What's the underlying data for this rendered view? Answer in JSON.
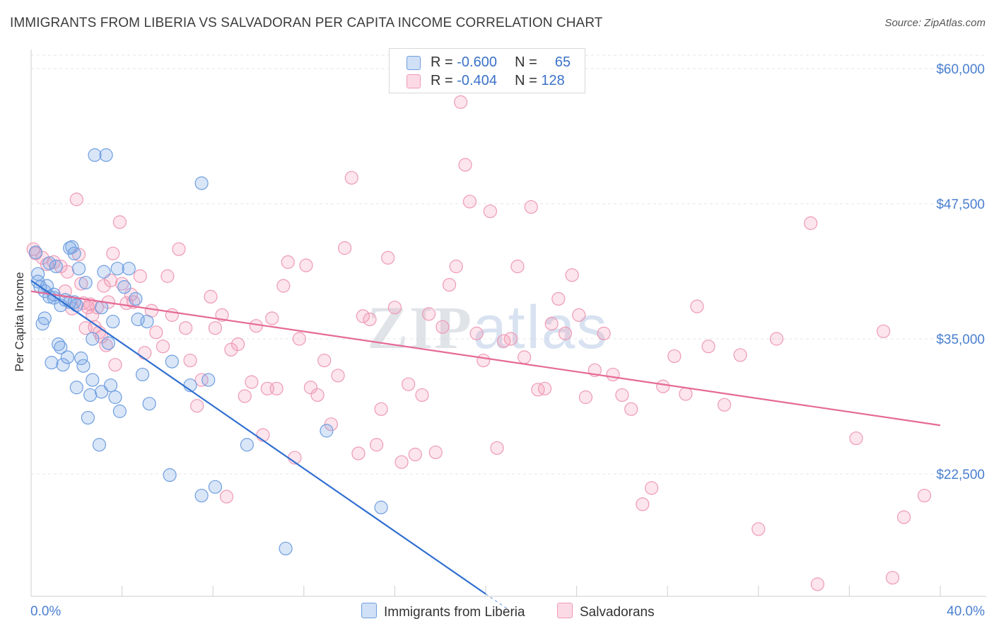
{
  "title": "IMMIGRANTS FROM LIBERIA VS SALVADORAN PER CAPITA INCOME CORRELATION CHART",
  "source": "Source: ZipAtlas.com",
  "watermark": "ZIPatlas",
  "legend": {
    "rows": [
      {
        "r_label": "R =",
        "r_value": "-0.600",
        "n_label": "N =",
        "n_value": "65"
      },
      {
        "r_label": "R =",
        "r_value": "-0.404",
        "n_label": "N =",
        "n_value": "128"
      }
    ]
  },
  "bottom_legend": [
    "Immigrants from Liberia",
    "Salvadorans"
  ],
  "colors": {
    "blue_fill": "rgba(120,165,230,0.28)",
    "blue_stroke": "#6f9ee0",
    "blue_line": "#2f6fd0",
    "pink_fill": "rgba(245,150,180,0.25)",
    "pink_stroke": "#ee9ab6",
    "pink_line": "#e56a95",
    "grid": "#e6e6e6",
    "tick_text": "#4a7fd0"
  },
  "chart_data": {
    "type": "scatter",
    "title": "IMMIGRANTS FROM LIBERIA VS SALVADORAN PER CAPITA INCOME CORRELATION CHART",
    "xlabel": "",
    "ylabel": "Per Capita Income",
    "x_range": [
      0.0,
      40.0
    ],
    "y_range": [
      10000,
      62000
    ],
    "x_tick_labels": [
      "0.0%",
      "40.0%"
    ],
    "y_ticks": [
      22500,
      35000,
      47500,
      60000
    ],
    "y_tick_labels": [
      "$22,500",
      "$35,000",
      "$47,500",
      "$60,000"
    ],
    "grid": true,
    "legend_position": "top-center",
    "series": [
      {
        "name": "Immigrants from Liberia",
        "color": "#6f9ee0",
        "trend": {
          "x": [
            0.0,
            20.0
          ],
          "y": [
            40400,
            11400
          ],
          "dashed_to": {
            "x": 21.0,
            "y": 9950
          }
        },
        "points": [
          [
            0.3,
            41000
          ],
          [
            0.3,
            40300
          ],
          [
            0.4,
            39800
          ],
          [
            0.5,
            36400
          ],
          [
            0.6,
            36900
          ],
          [
            0.6,
            39400
          ],
          [
            0.7,
            39900
          ],
          [
            0.8,
            42000
          ],
          [
            0.8,
            38900
          ],
          [
            0.9,
            32800
          ],
          [
            1.0,
            39100
          ],
          [
            1.0,
            38800
          ],
          [
            1.1,
            41700
          ],
          [
            1.2,
            34500
          ],
          [
            1.3,
            34200
          ],
          [
            1.3,
            38100
          ],
          [
            1.4,
            32600
          ],
          [
            1.5,
            38600
          ],
          [
            1.6,
            33300
          ],
          [
            1.7,
            43400
          ],
          [
            1.7,
            38400
          ],
          [
            1.8,
            43500
          ],
          [
            1.9,
            42900
          ],
          [
            1.9,
            38400
          ],
          [
            2.0,
            38100
          ],
          [
            2.0,
            30500
          ],
          [
            2.1,
            41500
          ],
          [
            2.2,
            33200
          ],
          [
            2.3,
            32500
          ],
          [
            2.4,
            40200
          ],
          [
            2.5,
            27700
          ],
          [
            2.6,
            29800
          ],
          [
            2.7,
            31200
          ],
          [
            2.7,
            35000
          ],
          [
            2.8,
            52000
          ],
          [
            3.0,
            25200
          ],
          [
            3.1,
            30100
          ],
          [
            3.1,
            37900
          ],
          [
            3.2,
            41200
          ],
          [
            3.3,
            52000
          ],
          [
            3.4,
            34600
          ],
          [
            3.5,
            30700
          ],
          [
            3.6,
            36600
          ],
          [
            3.7,
            29600
          ],
          [
            3.8,
            41500
          ],
          [
            3.9,
            28300
          ],
          [
            4.1,
            39800
          ],
          [
            4.3,
            41500
          ],
          [
            4.6,
            38700
          ],
          [
            4.7,
            36800
          ],
          [
            4.9,
            31700
          ],
          [
            5.1,
            36600
          ],
          [
            5.2,
            29000
          ],
          [
            6.1,
            22400
          ],
          [
            6.2,
            32900
          ],
          [
            7.0,
            30700
          ],
          [
            7.5,
            20500
          ],
          [
            7.5,
            49400
          ],
          [
            7.8,
            31200
          ],
          [
            8.1,
            21300
          ],
          [
            9.5,
            25200
          ],
          [
            11.2,
            15600
          ],
          [
            13.0,
            26500
          ],
          [
            15.4,
            19400
          ],
          [
            0.2,
            43000
          ]
        ]
      },
      {
        "name": "Salvadorans",
        "color": "#ee9ab6",
        "trend": {
          "x": [
            0.0,
            40.0
          ],
          "y": [
            39400,
            27000
          ]
        },
        "points": [
          [
            0.1,
            43300
          ],
          [
            0.2,
            42900
          ],
          [
            0.5,
            42500
          ],
          [
            0.7,
            41900
          ],
          [
            1.0,
            42100
          ],
          [
            1.3,
            41700
          ],
          [
            1.5,
            39400
          ],
          [
            1.6,
            41200
          ],
          [
            1.8,
            37800
          ],
          [
            2.0,
            47900
          ],
          [
            2.1,
            42800
          ],
          [
            2.2,
            40100
          ],
          [
            2.3,
            38300
          ],
          [
            2.4,
            36000
          ],
          [
            2.5,
            37900
          ],
          [
            2.6,
            38200
          ],
          [
            2.7,
            37200
          ],
          [
            2.8,
            36100
          ],
          [
            2.9,
            37900
          ],
          [
            3.0,
            35600
          ],
          [
            3.1,
            35200
          ],
          [
            3.2,
            39900
          ],
          [
            3.3,
            34400
          ],
          [
            3.4,
            38400
          ],
          [
            3.5,
            40400
          ],
          [
            3.6,
            42900
          ],
          [
            3.7,
            32600
          ],
          [
            3.9,
            45800
          ],
          [
            4.0,
            40100
          ],
          [
            4.2,
            38300
          ],
          [
            4.4,
            39100
          ],
          [
            4.5,
            38400
          ],
          [
            4.8,
            40800
          ],
          [
            5.0,
            33700
          ],
          [
            5.3,
            37600
          ],
          [
            5.5,
            35600
          ],
          [
            5.8,
            34300
          ],
          [
            6.0,
            40800
          ],
          [
            6.2,
            37200
          ],
          [
            6.5,
            43300
          ],
          [
            6.8,
            36000
          ],
          [
            7.0,
            33000
          ],
          [
            7.3,
            28800
          ],
          [
            7.5,
            31200
          ],
          [
            7.9,
            38900
          ],
          [
            8.1,
            36000
          ],
          [
            8.4,
            37200
          ],
          [
            8.6,
            20400
          ],
          [
            8.8,
            34000
          ],
          [
            9.1,
            34500
          ],
          [
            9.4,
            29700
          ],
          [
            9.7,
            31000
          ],
          [
            9.9,
            36200
          ],
          [
            10.2,
            26100
          ],
          [
            10.4,
            30400
          ],
          [
            10.6,
            36900
          ],
          [
            10.8,
            30400
          ],
          [
            11.1,
            39900
          ],
          [
            11.3,
            42100
          ],
          [
            11.6,
            24000
          ],
          [
            11.8,
            35000
          ],
          [
            12.1,
            41800
          ],
          [
            12.3,
            30500
          ],
          [
            12.6,
            29800
          ],
          [
            12.9,
            33000
          ],
          [
            13.2,
            27100
          ],
          [
            13.5,
            31600
          ],
          [
            13.8,
            43400
          ],
          [
            14.1,
            49900
          ],
          [
            14.4,
            24400
          ],
          [
            14.6,
            37100
          ],
          [
            14.9,
            36800
          ],
          [
            15.2,
            25200
          ],
          [
            15.4,
            28500
          ],
          [
            15.7,
            42500
          ],
          [
            16.0,
            37900
          ],
          [
            16.3,
            23600
          ],
          [
            16.6,
            30800
          ],
          [
            16.9,
            24300
          ],
          [
            17.2,
            29800
          ],
          [
            17.5,
            37300
          ],
          [
            17.8,
            24500
          ],
          [
            18.1,
            36100
          ],
          [
            18.4,
            40000
          ],
          [
            18.7,
            41700
          ],
          [
            18.9,
            56900
          ],
          [
            19.1,
            51100
          ],
          [
            19.3,
            47700
          ],
          [
            19.6,
            35500
          ],
          [
            19.9,
            33000
          ],
          [
            20.2,
            46800
          ],
          [
            20.5,
            24900
          ],
          [
            20.8,
            34800
          ],
          [
            21.1,
            35000
          ],
          [
            21.4,
            41700
          ],
          [
            21.7,
            33300
          ],
          [
            22.0,
            47200
          ],
          [
            22.3,
            30300
          ],
          [
            22.6,
            30400
          ],
          [
            22.9,
            36400
          ],
          [
            23.2,
            38700
          ],
          [
            23.5,
            35500
          ],
          [
            23.8,
            40900
          ],
          [
            24.1,
            37200
          ],
          [
            24.4,
            29600
          ],
          [
            24.8,
            32100
          ],
          [
            25.2,
            35500
          ],
          [
            25.6,
            31700
          ],
          [
            26.0,
            29800
          ],
          [
            26.4,
            28500
          ],
          [
            26.9,
            19700
          ],
          [
            27.3,
            21200
          ],
          [
            27.8,
            30600
          ],
          [
            28.3,
            33400
          ],
          [
            28.8,
            29900
          ],
          [
            29.3,
            38000
          ],
          [
            29.8,
            34300
          ],
          [
            30.5,
            28900
          ],
          [
            31.2,
            33500
          ],
          [
            32.0,
            17400
          ],
          [
            32.8,
            35000
          ],
          [
            34.3,
            45700
          ],
          [
            34.6,
            12300
          ],
          [
            36.3,
            25800
          ],
          [
            37.5,
            35700
          ],
          [
            37.9,
            12900
          ],
          [
            38.4,
            18500
          ],
          [
            39.3,
            20500
          ]
        ]
      }
    ]
  }
}
